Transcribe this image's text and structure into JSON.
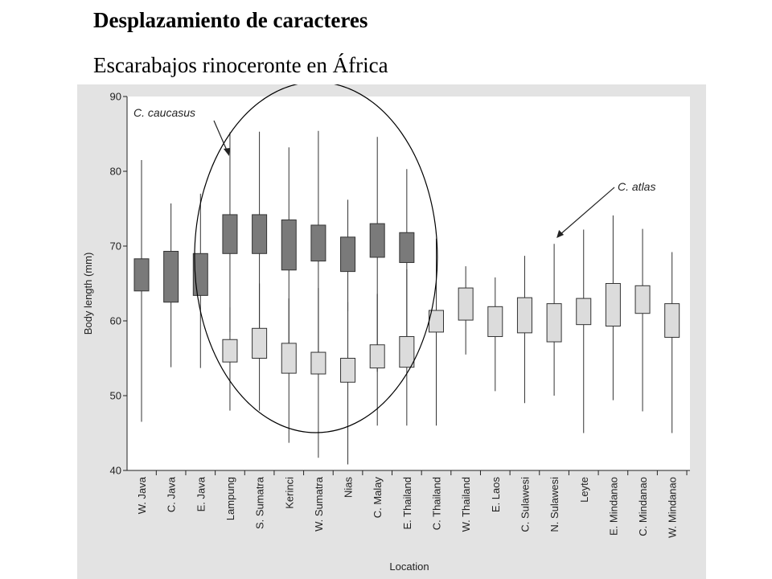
{
  "slide": {
    "title": "Desplazamiento de caracteres",
    "subtitle": "Escarabajos rinoceronte en África"
  },
  "chart_data": {
    "type": "boxplot",
    "title": "",
    "xlabel": "Location",
    "ylabel": "Body length (mm)",
    "ylim": [
      40,
      90
    ],
    "yticks": [
      40,
      50,
      60,
      70,
      80,
      90
    ],
    "grid": false,
    "categories": [
      "W. Java",
      "C. Java",
      "E. Java",
      "Lampung",
      "S. Sumatra",
      "Kerinci",
      "W. Sumatra",
      "Nias",
      "C. Malay",
      "E. Thailand",
      "C. Thailand",
      "W. Thailand",
      "E. Laos",
      "C. Sulawesi",
      "N. Sulawesi",
      "Leyte",
      "E. Mindanao",
      "C. Mindanao",
      "W. Mindanao"
    ],
    "series": [
      {
        "name": "C. caucasus",
        "color": "#7a7a7a",
        "boxes": [
          {
            "category": "W. Java",
            "min": 46.5,
            "q1": 64.0,
            "q3": 68.3,
            "max": 81.5
          },
          {
            "category": "C. Java",
            "min": 53.8,
            "q1": 62.5,
            "q3": 69.3,
            "max": 75.7
          },
          {
            "category": "E. Java",
            "min": 53.7,
            "q1": 63.4,
            "q3": 69.0,
            "max": 77.0
          },
          {
            "category": "Lampung",
            "min": 58.5,
            "q1": 69.0,
            "q3": 74.2,
            "max": 85.2
          },
          {
            "category": "S. Sumatra",
            "min": 59.0,
            "q1": 69.0,
            "q3": 74.2,
            "max": 85.3
          },
          {
            "category": "Kerinci",
            "min": 53.0,
            "q1": 66.8,
            "q3": 73.5,
            "max": 83.2
          },
          {
            "category": "W. Sumatra",
            "min": 55.0,
            "q1": 68.0,
            "q3": 72.8,
            "max": 85.4
          },
          {
            "category": "Nias",
            "min": 61.3,
            "q1": 66.6,
            "q3": 71.2,
            "max": 76.2
          },
          {
            "category": "C. Malay",
            "min": 53.2,
            "q1": 68.5,
            "q3": 73.0,
            "max": 84.6
          },
          {
            "category": "E. Thailand",
            "min": 57.5,
            "q1": 67.8,
            "q3": 71.8,
            "max": 80.3
          }
        ]
      },
      {
        "name": "C. atlas",
        "color": "#dcdcdc",
        "boxes": [
          {
            "category": "Lampung",
            "min": 48.0,
            "q1": 54.5,
            "q3": 57.5,
            "max": 61.8
          },
          {
            "category": "S. Sumatra",
            "min": 48.0,
            "q1": 55.0,
            "q3": 59.0,
            "max": 65.0
          },
          {
            "category": "Kerinci",
            "min": 43.7,
            "q1": 53.0,
            "q3": 57.0,
            "max": 63.0
          },
          {
            "category": "W. Sumatra",
            "min": 41.7,
            "q1": 52.9,
            "q3": 55.8,
            "max": 64.4
          },
          {
            "category": "Nias",
            "min": 40.8,
            "q1": 51.8,
            "q3": 55.0,
            "max": 62.5
          },
          {
            "category": "C. Malay",
            "min": 46.0,
            "q1": 53.7,
            "q3": 56.8,
            "max": 63.6
          },
          {
            "category": "E. Thailand",
            "min": 46.0,
            "q1": 53.8,
            "q3": 57.9,
            "max": 66.9
          },
          {
            "category": "C. Thailand",
            "min": 46.0,
            "q1": 58.5,
            "q3": 61.4,
            "max": 71.0
          },
          {
            "category": "W. Thailand",
            "min": 55.5,
            "q1": 60.1,
            "q3": 64.4,
            "max": 67.3
          },
          {
            "category": "E. Laos",
            "min": 50.6,
            "q1": 57.9,
            "q3": 61.9,
            "max": 65.8
          },
          {
            "category": "C. Sulawesi",
            "min": 49.0,
            "q1": 58.4,
            "q3": 63.1,
            "max": 68.7
          },
          {
            "category": "N. Sulawesi",
            "min": 50.0,
            "q1": 57.2,
            "q3": 62.3,
            "max": 70.3
          },
          {
            "category": "Leyte",
            "min": 45.0,
            "q1": 59.5,
            "q3": 63.0,
            "max": 72.2
          },
          {
            "category": "E. Mindanao",
            "min": 49.4,
            "q1": 59.3,
            "q3": 65.0,
            "max": 74.1
          },
          {
            "category": "C. Mindanao",
            "min": 47.9,
            "q1": 61.0,
            "q3": 64.7,
            "max": 72.3
          },
          {
            "category": "W. Mindanao",
            "min": 45.0,
            "q1": 57.8,
            "q3": 62.3,
            "max": 69.2
          }
        ]
      }
    ],
    "annotations": [
      {
        "text": "C. caucasus",
        "points_to": "Lampung"
      },
      {
        "text": "C. atlas",
        "points_to": "N. Sulawesi"
      }
    ],
    "highlight_circle": {
      "from": "Lampung",
      "to": "E. Thailand"
    }
  }
}
